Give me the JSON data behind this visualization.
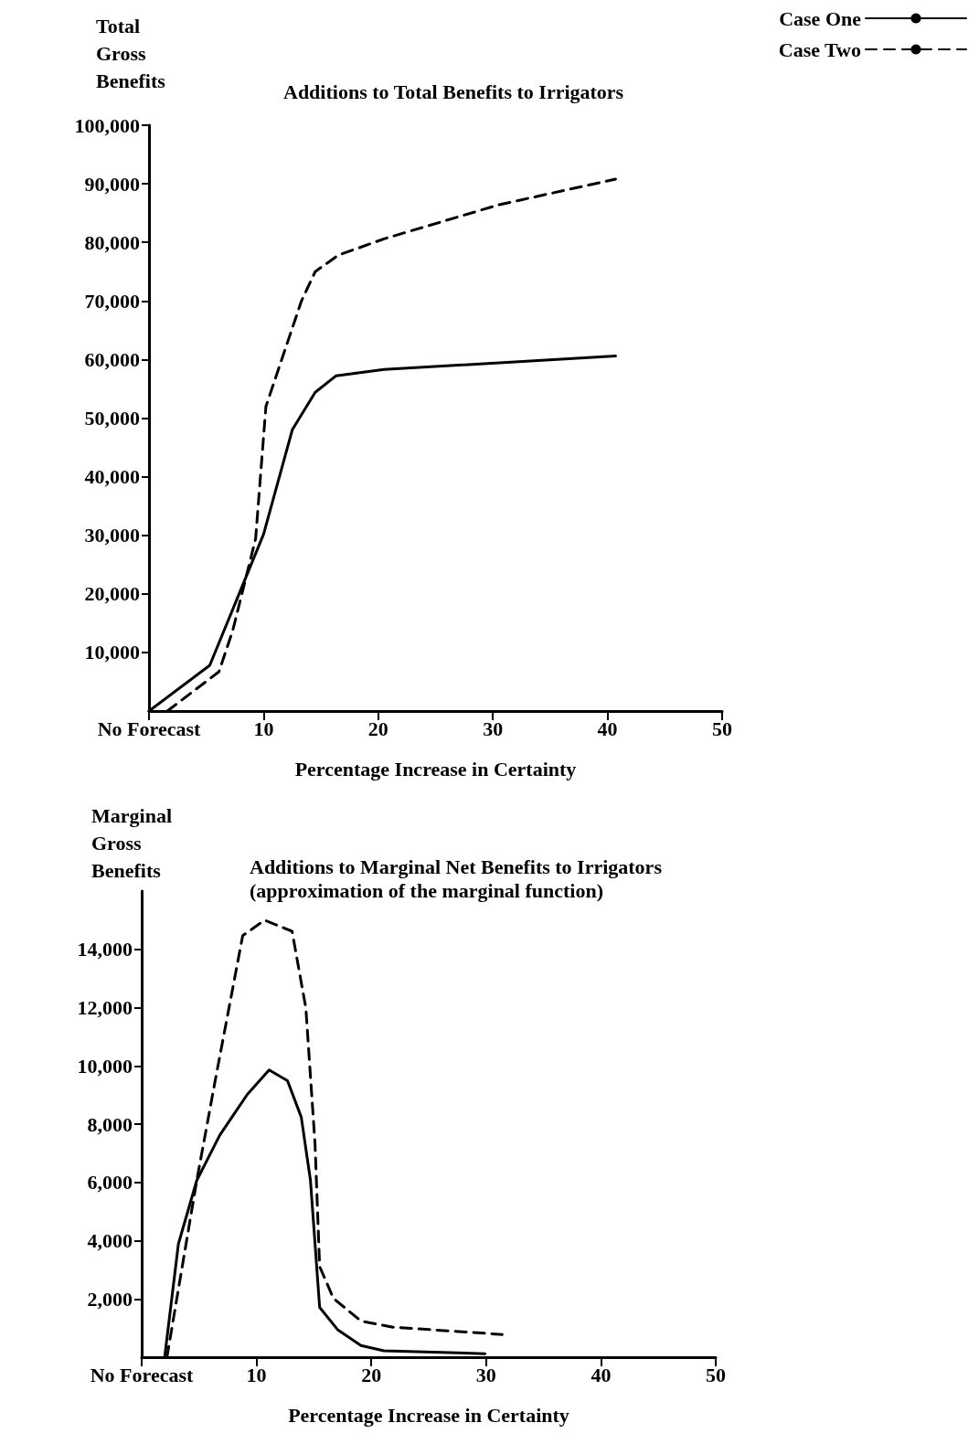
{
  "chart_data": [
    {
      "type": "line",
      "title": "Additions to Total Benefits to Irrigators",
      "xlabel": "Percentage Increase in Certainty",
      "ylabel": "Total Gross Benefits",
      "xlim": [
        0,
        50
      ],
      "xticks": [
        {
          "value": 0,
          "label": "No Forecast"
        },
        10,
        20,
        30,
        40,
        50
      ],
      "ylim": [
        0,
        100000
      ],
      "yticks": [
        {
          "value": 10000,
          "label": "10,000"
        },
        {
          "value": 20000,
          "label": "20,000"
        },
        {
          "value": 30000,
          "label": "30,000"
        },
        {
          "value": 40000,
          "label": "40,000"
        },
        {
          "value": 50000,
          "label": "50,000"
        },
        {
          "value": 60000,
          "label": "60,000"
        },
        {
          "value": 70000,
          "label": "70,000"
        },
        {
          "value": 80000,
          "label": "80,000"
        },
        {
          "value": 90000,
          "label": "90,000"
        },
        {
          "value": 100000,
          "label": "100,000"
        }
      ],
      "grid": false,
      "legend": "top right",
      "marker": "none",
      "series": [
        {
          "name": "Case One",
          "color": "#000000",
          "line_style": "solid",
          "x": [
            0,
            5.3,
            10,
            12.5,
            14.5,
            16.3,
            20.5,
            40.7
          ],
          "values": [
            0,
            7800,
            30200,
            48000,
            54400,
            57200,
            58300,
            60600
          ]
        },
        {
          "name": "Case Two",
          "color": "#000000",
          "line_style": "dashed",
          "x": [
            1.6,
            6.1,
            7.3,
            9.3,
            10.2,
            13.3,
            14.5,
            16.5,
            20.5,
            30.5,
            40.7
          ],
          "values": [
            0,
            6700,
            13700,
            29400,
            52000,
            70000,
            75000,
            77800,
            80600,
            86400,
            90800
          ]
        }
      ]
    },
    {
      "type": "line",
      "title": "Additions to Marginal Net Benefits to Irrigators",
      "subtitle": "(approximation of the marginal function)",
      "xlabel": "Percentage Increase in Certainty",
      "ylabel": "Marginal Gross Benefits",
      "xlim": [
        0,
        50
      ],
      "xticks": [
        {
          "value": 0,
          "label": "No Forecast"
        },
        10,
        20,
        30,
        40,
        50
      ],
      "ylim": [
        0,
        16000
      ],
      "yticks": [
        {
          "value": 2000,
          "label": "2,000"
        },
        {
          "value": 4000,
          "label": "4,000"
        },
        {
          "value": 6000,
          "label": "6,000"
        },
        {
          "value": 8000,
          "label": "8,000"
        },
        {
          "value": 10000,
          "label": "10,000"
        },
        {
          "value": 12000,
          "label": "12,000"
        },
        {
          "value": 14000,
          "label": "14,000"
        }
      ],
      "grid": false,
      "marker": "none",
      "series": [
        {
          "color": "#000000",
          "line_style": "solid",
          "x": [
            2,
            3.2,
            4.8,
            6.8,
            9.2,
            11.1,
            12.7,
            13.9,
            14.7,
            15.5,
            17.1,
            19.1,
            21.1,
            29.9
          ],
          "values": [
            0,
            3890,
            6070,
            7620,
            9020,
            9860,
            9490,
            8240,
            6070,
            1710,
            930,
            400,
            220,
            120
          ]
        },
        {
          "color": "#000000",
          "line_style": "dashed",
          "x": [
            2.2,
            3.6,
            4.8,
            6.4,
            7.6,
            8.8,
            10.7,
            13.1,
            14.3,
            15.1,
            15.5,
            16.7,
            19.1,
            21.9,
            31.4
          ],
          "values": [
            0,
            3270,
            6070,
            9490,
            11980,
            14470,
            15000,
            14620,
            11980,
            7310,
            3110,
            2020,
            1240,
            1030,
            780
          ]
        }
      ]
    }
  ]
}
